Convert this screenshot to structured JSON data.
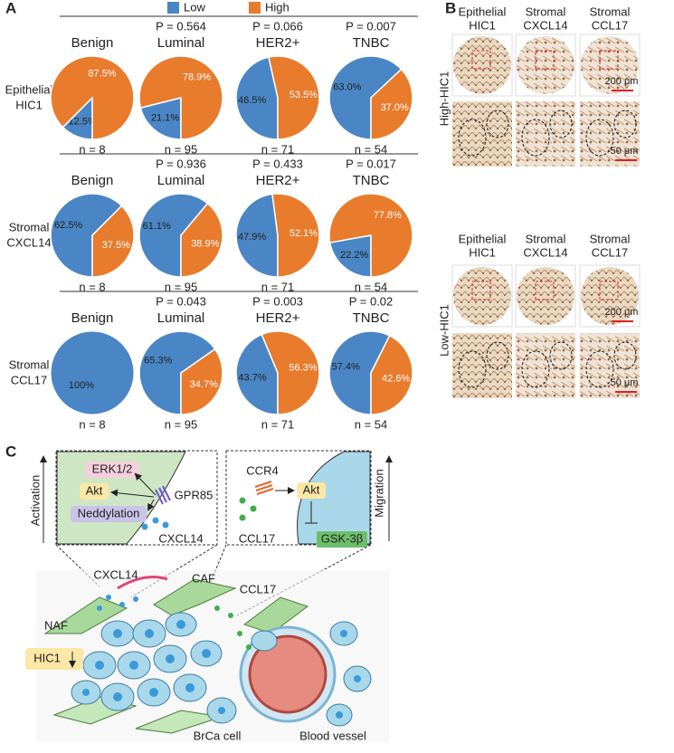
{
  "panel_a": {
    "label": "A",
    "row_labels": [
      [
        "Epithelial",
        "HIC1"
      ],
      [
        "Stromal",
        "CXCL14"
      ],
      [
        "Stromal",
        "CCL17"
      ]
    ]
  },
  "chart_data": [
    {
      "type": "pie",
      "title": "Benign",
      "categories": [
        "Low",
        "High"
      ],
      "colors": [
        "#4a86c5",
        "#e87b2c"
      ],
      "values": [
        12.5,
        87.5
      ],
      "value_labels": [
        "12.5%",
        "87.5%"
      ],
      "caption": "n = 8"
    },
    {
      "type": "pie",
      "title": "Luminal",
      "subtitle": "P = 0.564",
      "categories": [
        "Low",
        "High"
      ],
      "colors": [
        "#4a86c5",
        "#e87b2c"
      ],
      "values": [
        21.1,
        78.9
      ],
      "value_labels": [
        "21.1%",
        "78.9%"
      ],
      "caption": "n = 95"
    },
    {
      "type": "pie",
      "title": "HER2+",
      "subtitle": "P = 0.066",
      "categories": [
        "Low",
        "High"
      ],
      "colors": [
        "#4a86c5",
        "#e87b2c"
      ],
      "values": [
        46.5,
        53.5
      ],
      "value_labels": [
        "46.5%",
        "53.5%"
      ],
      "caption": "n = 71"
    },
    {
      "type": "pie",
      "title": "TNBC",
      "subtitle": "P = 0.007",
      "categories": [
        "Low",
        "High"
      ],
      "colors": [
        "#4a86c5",
        "#e87b2c"
      ],
      "values": [
        63.0,
        37.0
      ],
      "value_labels": [
        "63.0%",
        "37.0%"
      ],
      "caption": "n = 54"
    },
    {
      "type": "pie",
      "title": "Benign",
      "categories": [
        "Low",
        "High"
      ],
      "colors": [
        "#4a86c5",
        "#e87b2c"
      ],
      "values": [
        62.5,
        37.5
      ],
      "value_labels": [
        "62.5%",
        "37.5%"
      ],
      "caption": "n = 8"
    },
    {
      "type": "pie",
      "title": "Luminal",
      "subtitle": "P = 0.936",
      "categories": [
        "Low",
        "High"
      ],
      "colors": [
        "#4a86c5",
        "#e87b2c"
      ],
      "values": [
        61.1,
        38.9
      ],
      "value_labels": [
        "61.1%",
        "38.9%"
      ],
      "caption": "n = 95"
    },
    {
      "type": "pie",
      "title": "HER2+",
      "subtitle": "P = 0.433",
      "categories": [
        "Low",
        "High"
      ],
      "colors": [
        "#4a86c5",
        "#e87b2c"
      ],
      "values": [
        47.9,
        52.1
      ],
      "value_labels": [
        "47.9%",
        "52.1%"
      ],
      "caption": "n = 71"
    },
    {
      "type": "pie",
      "title": "TNBC",
      "subtitle": "P = 0.017",
      "categories": [
        "Low",
        "High"
      ],
      "colors": [
        "#4a86c5",
        "#e87b2c"
      ],
      "values": [
        22.2,
        77.8
      ],
      "value_labels": [
        "22.2%",
        "77.8%"
      ],
      "caption": "n = 54"
    },
    {
      "type": "pie",
      "title": "Benign",
      "categories": [
        "Low",
        "High"
      ],
      "colors": [
        "#4a86c5",
        "#e87b2c"
      ],
      "values": [
        100,
        0
      ],
      "value_labels": [
        "100%",
        null
      ],
      "caption": "n = 8"
    },
    {
      "type": "pie",
      "title": "Luminal",
      "subtitle": "P = 0.043",
      "categories": [
        "Low",
        "High"
      ],
      "colors": [
        "#4a86c5",
        "#e87b2c"
      ],
      "values": [
        65.3,
        34.7
      ],
      "value_labels": [
        "65.3%",
        "34.7%"
      ],
      "caption": "n = 95"
    },
    {
      "type": "pie",
      "title": "HER2+",
      "subtitle": "P = 0.003",
      "categories": [
        "Low",
        "High"
      ],
      "colors": [
        "#4a86c5",
        "#e87b2c"
      ],
      "values": [
        43.7,
        56.3
      ],
      "value_labels": [
        "43.7%",
        "56.3%"
      ],
      "caption": "n = 71"
    },
    {
      "type": "pie",
      "title": "TNBC",
      "subtitle": "P = 0.02",
      "categories": [
        "Low",
        "High"
      ],
      "colors": [
        "#4a86c5",
        "#e87b2c"
      ],
      "values": [
        57.4,
        42.6
      ],
      "value_labels": [
        "57.4%",
        "42.6%"
      ],
      "caption": "n = 54"
    }
  ],
  "panel_b": {
    "label": "B",
    "columns": [
      [
        "Epithelial",
        "HIC1"
      ],
      [
        "Stromal",
        "CXCL14"
      ],
      [
        "Stromal",
        "CCL17"
      ]
    ],
    "rows": [
      "High-HIC1",
      "Low-HIC1"
    ],
    "scale_bars": [
      "200 μm",
      "50 μm"
    ]
  },
  "panel_c": {
    "label": "C",
    "erk": "ERK1/2",
    "akt_left": "Akt",
    "neddylation": "Neddylation",
    "gpr85": "GPR85",
    "cxcl14_box": "CXCL14",
    "activation": "Activation",
    "ccr4": "CCR4",
    "akt_right": "Akt",
    "ccl17_box": "CCL17",
    "gsk": "GSK-3β",
    "migration": "Migration",
    "cxcl14": "CXCL14",
    "caf": "CAF",
    "ccl17": "CCL17",
    "naf": "NAF",
    "hic1": "HIC1",
    "brca": "BrCa cell",
    "vessel": "Blood vessel"
  }
}
